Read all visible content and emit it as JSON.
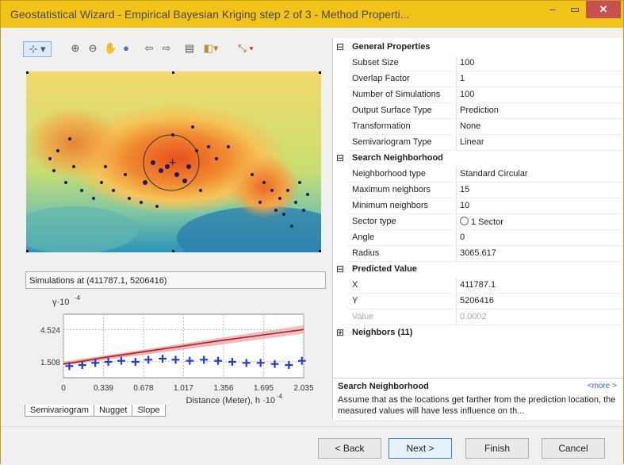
{
  "window": {
    "title": "Geostatistical Wizard - Empirical Bayesian Kriging step 2 of 3 - Method Properti...",
    "minimize_glyph": "–",
    "maximize_glyph": "▭",
    "close_glyph": "✕"
  },
  "toolbar": {
    "tools": [
      "pan-select-icon",
      "zoom-in-icon",
      "zoom-out-icon",
      "pan-hand-icon",
      "globe-icon",
      "back-arrow-icon",
      "forward-arrow-icon",
      "table-icon",
      "layer-icon",
      "measure-icon"
    ]
  },
  "simulation": {
    "label": "Simulations at (411787.1, 5206416)"
  },
  "chart_data": {
    "type": "line",
    "ylabel_prefix": "γ",
    "ylabel_scale": "·10",
    "ylabel_exp": "-4",
    "xlabel": "Distance (Meter), h",
    "xlabel_scale": "·10",
    "xlabel_exp": "-4",
    "yticks": [
      "4.524",
      "1.508"
    ],
    "xticks": [
      "0",
      "0.339",
      "0.678",
      "1.017",
      "1.356",
      "1.695",
      "2.035"
    ],
    "ylim": [
      0,
      6
    ],
    "xlim": [
      0,
      2.035
    ],
    "series": [
      {
        "name": "",
        "x": [
          0,
          0.1,
          0.339,
          0.678,
          1.017,
          1.356,
          1.695,
          2.035
        ],
        "values": [
          1.3,
          1.45,
          1.9,
          2.45,
          3.0,
          3.55,
          4.05,
          4.55
        ]
      }
    ],
    "points": [
      {
        "x": 0.05,
        "y": 1.1
      },
      {
        "x": 0.16,
        "y": 1.2
      },
      {
        "x": 0.27,
        "y": 1.4
      },
      {
        "x": 0.38,
        "y": 1.5
      },
      {
        "x": 0.49,
        "y": 1.6
      },
      {
        "x": 0.61,
        "y": 1.5
      },
      {
        "x": 0.72,
        "y": 1.7
      },
      {
        "x": 0.84,
        "y": 1.8
      },
      {
        "x": 0.95,
        "y": 1.7
      },
      {
        "x": 1.07,
        "y": 1.6
      },
      {
        "x": 1.19,
        "y": 1.7
      },
      {
        "x": 1.31,
        "y": 1.6
      },
      {
        "x": 1.43,
        "y": 1.5
      },
      {
        "x": 1.55,
        "y": 1.4
      },
      {
        "x": 1.67,
        "y": 1.4
      },
      {
        "x": 1.79,
        "y": 1.3
      },
      {
        "x": 1.91,
        "y": 1.2
      },
      {
        "x": 2.02,
        "y": 1.6
      }
    ]
  },
  "tabs": [
    "Semivariogram",
    "Nugget",
    "Slope"
  ],
  "properties": {
    "sections": [
      {
        "title": "General Properties",
        "expander": "⊟",
        "rows": [
          {
            "k": "Subset Size",
            "v": "100"
          },
          {
            "k": "Overlap Factor",
            "v": "1"
          },
          {
            "k": "Number of Simulations",
            "v": "100"
          },
          {
            "k": "Output Surface Type",
            "v": "Prediction"
          },
          {
            "k": "Transformation",
            "v": "None"
          },
          {
            "k": "Semivariogram Type",
            "v": "Linear"
          }
        ]
      },
      {
        "title": "Search Neighborhood",
        "expander": "⊟",
        "rows": [
          {
            "k": "Neighborhood type",
            "v": "Standard Circular"
          },
          {
            "k": "Maximum neighbors",
            "v": "15"
          },
          {
            "k": "Minimum neighbors",
            "v": "10"
          },
          {
            "k": "Sector type",
            "v": "1 Sector"
          },
          {
            "k": "Angle",
            "v": "0"
          },
          {
            "k": "Radius",
            "v": "3065.617"
          }
        ]
      },
      {
        "title": "Predicted Value",
        "expander": "⊟",
        "rows": [
          {
            "k": "X",
            "v": "411787.1"
          },
          {
            "k": "Y",
            "v": "5206416"
          },
          {
            "k": "Value",
            "v": "0.0002"
          }
        ]
      },
      {
        "title": "Neighbors (11)",
        "expander": "⊞",
        "rows": []
      }
    ]
  },
  "description": {
    "heading": "Search Neighborhood",
    "more": "<more >",
    "text": "Assume that as the locations get farther from the prediction location, the measured values will have less influence on th..."
  },
  "buttons": {
    "back": "< Back",
    "next": "Next >",
    "finish": "Finish",
    "cancel": "Cancel"
  }
}
